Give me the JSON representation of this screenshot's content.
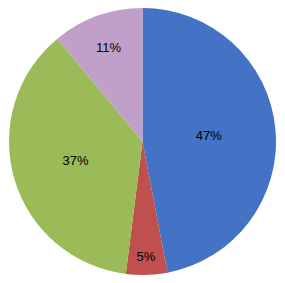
{
  "chart_data": {
    "type": "pie",
    "values": [
      47,
      5,
      37,
      11
    ],
    "value_labels": [
      "47%",
      "5%",
      "37%",
      "11%"
    ],
    "data_labels": true,
    "colors": [
      "#4472C4",
      "#C0504D",
      "#9BBB59",
      "#C0A0C8"
    ]
  }
}
